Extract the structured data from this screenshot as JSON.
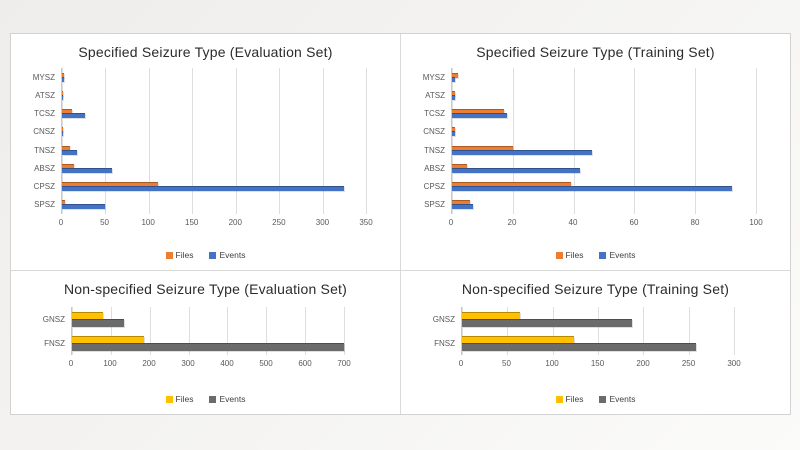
{
  "colors": {
    "specified_files": "#ED7D31",
    "specified_events": "#4472C4",
    "nonspecified_files": "#FFC000",
    "nonspecified_events": "#6B6B6B",
    "gridline": "#DEDEDE",
    "tick_text": "#595959"
  },
  "chart_data": [
    {
      "id": "specified-evaluation",
      "type": "bar",
      "orientation": "horizontal",
      "title": "Specified Seizure Type (Evaluation Set)",
      "categories": [
        "MYSZ",
        "ATSZ",
        "TCSZ",
        "CNSZ",
        "TNSZ",
        "ABSZ",
        "CPSZ",
        "SPSZ"
      ],
      "series": [
        {
          "name": "Files",
          "color": "#ED7D31",
          "values": [
            2,
            1,
            11,
            1,
            9,
            14,
            110,
            3
          ]
        },
        {
          "name": "Events",
          "color": "#4472C4",
          "values": [
            2,
            1,
            26,
            1,
            17,
            57,
            325,
            50
          ]
        }
      ],
      "xlim": [
        0,
        350
      ],
      "xticks": [
        0,
        50,
        100,
        150,
        200,
        250,
        300,
        350
      ],
      "grid": true,
      "legend_position": "bottom"
    },
    {
      "id": "specified-training",
      "type": "bar",
      "orientation": "horizontal",
      "title": "Specified Seizure Type (Training Set)",
      "categories": [
        "MYSZ",
        "ATSZ",
        "TCSZ",
        "CNSZ",
        "TNSZ",
        "ABSZ",
        "CPSZ",
        "SPSZ"
      ],
      "series": [
        {
          "name": "Files",
          "color": "#ED7D31",
          "values": [
            2,
            1,
            17,
            1,
            20,
            5,
            39,
            6
          ]
        },
        {
          "name": "Events",
          "color": "#4472C4",
          "values": [
            1,
            1,
            18,
            1,
            46,
            42,
            92,
            7
          ]
        }
      ],
      "xlim": [
        0,
        100
      ],
      "xticks": [
        0,
        20,
        40,
        60,
        80,
        100
      ],
      "grid": true,
      "legend_position": "bottom"
    },
    {
      "id": "nonspecified-evaluation",
      "type": "bar",
      "orientation": "horizontal",
      "title": "Non-specified Seizure Type (Evaluation Set)",
      "categories": [
        "GNSZ",
        "FNSZ"
      ],
      "series": [
        {
          "name": "Files",
          "color": "#FFC000",
          "values": [
            80,
            185
          ]
        },
        {
          "name": "Events",
          "color": "#6B6B6B",
          "values": [
            135,
            700
          ]
        }
      ],
      "xlim": [
        0,
        700
      ],
      "xticks": [
        0,
        100,
        200,
        300,
        400,
        500,
        600,
        700
      ],
      "grid": true,
      "legend_position": "bottom"
    },
    {
      "id": "nonspecified-training",
      "type": "bar",
      "orientation": "horizontal",
      "title": "Non-specified Seizure Type (Training Set)",
      "categories": [
        "GNSZ",
        "FNSZ"
      ],
      "series": [
        {
          "name": "Files",
          "color": "#FFC000",
          "values": [
            64,
            123
          ]
        },
        {
          "name": "Events",
          "color": "#6B6B6B",
          "values": [
            188,
            258
          ]
        }
      ],
      "xlim": [
        0,
        300
      ],
      "xticks": [
        0,
        50,
        100,
        150,
        200,
        250,
        300
      ],
      "grid": true,
      "legend_position": "bottom"
    }
  ]
}
